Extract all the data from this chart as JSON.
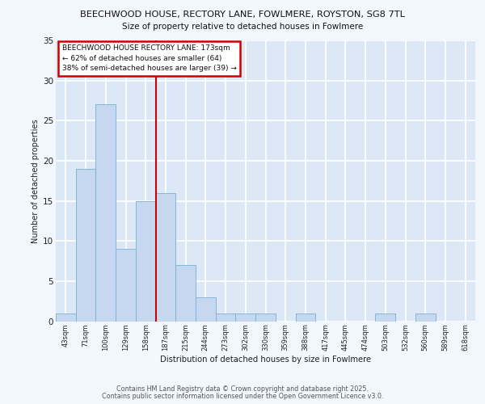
{
  "title1": "BEECHWOOD HOUSE, RECTORY LANE, FOWLMERE, ROYSTON, SG8 7TL",
  "title2": "Size of property relative to detached houses in Fowlmere",
  "xlabel": "Distribution of detached houses by size in Fowlmere",
  "ylabel": "Number of detached properties",
  "bin_labels": [
    "43sqm",
    "71sqm",
    "100sqm",
    "129sqm",
    "158sqm",
    "187sqm",
    "215sqm",
    "244sqm",
    "273sqm",
    "302sqm",
    "330sqm",
    "359sqm",
    "388sqm",
    "417sqm",
    "445sqm",
    "474sqm",
    "503sqm",
    "532sqm",
    "560sqm",
    "589sqm",
    "618sqm"
  ],
  "bar_heights": [
    1,
    19,
    27,
    9,
    15,
    16,
    7,
    3,
    1,
    1,
    1,
    0,
    1,
    0,
    0,
    0,
    1,
    0,
    1,
    0,
    0
  ],
  "bar_color": "#c5d8f0",
  "bar_edge_color": "#7bafd4",
  "bg_color": "#dce8f5",
  "fig_color": "#f2f7fd",
  "grid_color": "#ffffff",
  "vline_color": "#cc0000",
  "annotation_text": "BEECHWOOD HOUSE RECTORY LANE: 173sqm\n← 62% of detached houses are smaller (64)\n38% of semi-detached houses are larger (39) →",
  "annotation_box_color": "#ffffff",
  "annotation_box_edge": "#cc0000",
  "ylim": [
    0,
    35
  ],
  "yticks": [
    0,
    5,
    10,
    15,
    20,
    25,
    30,
    35
  ],
  "footer1": "Contains HM Land Registry data © Crown copyright and database right 2025.",
  "footer2": "Contains public sector information licensed under the Open Government Licence v3.0."
}
